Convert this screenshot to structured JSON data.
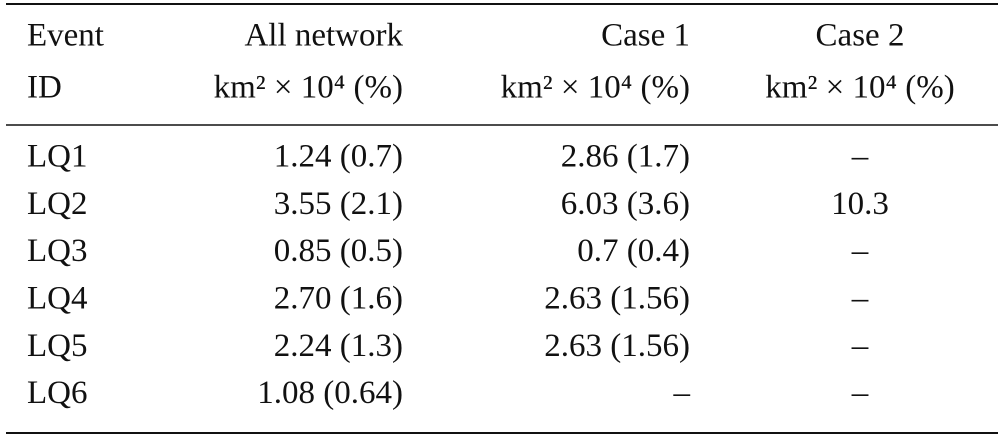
{
  "table": {
    "header": [
      [
        "Event",
        "ID"
      ],
      [
        "All network",
        "km² × 10⁴ (%)"
      ],
      [
        "Case 1",
        "km² × 10⁴ (%)"
      ],
      [
        "Case 2",
        "km² × 10⁴ (%)"
      ]
    ],
    "rows": [
      [
        "LQ1",
        "1.24 (0.7)",
        "2.86 (1.7)",
        "–"
      ],
      [
        "LQ2",
        "3.55 (2.1)",
        "6.03 (3.6)",
        "10.3"
      ],
      [
        "LQ3",
        "0.85 (0.5)",
        "0.7 (0.4)",
        "–"
      ],
      [
        "LQ4",
        "2.70 (1.6)",
        "2.63 (1.56)",
        "–"
      ],
      [
        "LQ5",
        "2.24 (1.3)",
        "2.63 (1.56)",
        "–"
      ],
      [
        "LQ6",
        "1.08 (0.64)",
        "–",
        "–"
      ]
    ]
  }
}
